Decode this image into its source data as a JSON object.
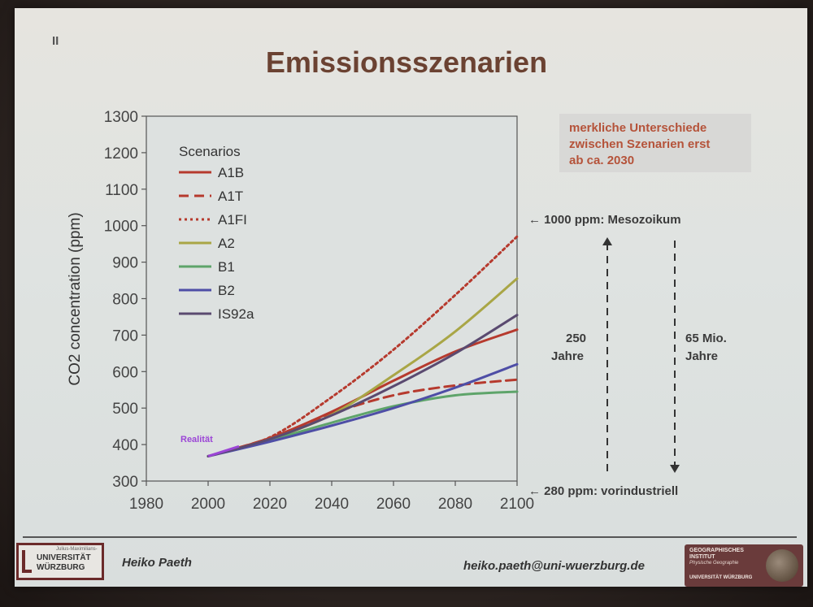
{
  "slide": {
    "number": "II",
    "title": "Emissionsszenarien",
    "note": [
      "merkliche Unterschiede",
      "zwischen Szenarien erst",
      "ab ca. 2030"
    ],
    "annotations": {
      "top": "← 1000 ppm: Mesozoikum",
      "bottom": "← 280 ppm: vorindustriell",
      "left_value": "250",
      "left_unit": "Jahre",
      "right_value": "65 Mio.",
      "right_unit": "Jahre"
    },
    "footer": {
      "university_small": "Julius-Maximilians-",
      "university_line1": "UNIVERSITÄT",
      "university_line2": "WÜRZBURG",
      "author": "Heiko Paeth",
      "email": "heiko.paeth@uni-wuerzburg.de",
      "institute_line1": "GEOGRAPHISCHES",
      "institute_line2": "INSTITUT",
      "institute_line3": "Physische Geographie",
      "institute_line4": "UNIVERSITÄT WÜRZBURG"
    }
  },
  "chart_data": {
    "type": "line",
    "title": "",
    "xlabel": "",
    "ylabel": "CO2 concentration (ppm)",
    "xlim": [
      1980,
      2100
    ],
    "ylim": [
      300,
      1300
    ],
    "x_ticks": [
      1980,
      2000,
      2020,
      2040,
      2060,
      2080,
      2100
    ],
    "y_ticks": [
      300,
      400,
      500,
      600,
      700,
      800,
      900,
      1000,
      1100,
      1200,
      1300
    ],
    "legend_title": "Scenarios",
    "legend_position": "top-left",
    "annotation": "Realität",
    "x": [
      2000,
      2020,
      2040,
      2060,
      2080,
      2100
    ],
    "series": [
      {
        "name": "A1B",
        "color": "#b63a2e",
        "style": "solid",
        "values": [
          368,
          418,
          490,
          575,
          655,
          715
        ]
      },
      {
        "name": "A1T",
        "color": "#b63a2e",
        "style": "dashed",
        "values": [
          368,
          418,
          485,
          535,
          562,
          578
        ]
      },
      {
        "name": "A1FI",
        "color": "#b63a2e",
        "style": "dotted",
        "values": [
          368,
          420,
          530,
          660,
          810,
          970
        ]
      },
      {
        "name": "A2",
        "color": "#a9a646",
        "style": "solid",
        "values": [
          368,
          415,
          482,
          590,
          710,
          855
        ]
      },
      {
        "name": "B1",
        "color": "#5ea46a",
        "style": "solid",
        "values": [
          368,
          412,
          460,
          505,
          535,
          545
        ]
      },
      {
        "name": "B2",
        "color": "#4e4ea6",
        "style": "solid",
        "values": [
          368,
          408,
          452,
          500,
          556,
          620
        ]
      },
      {
        "name": "IS92a",
        "color": "#5a4a70",
        "style": "solid",
        "values": [
          368,
          415,
          480,
          560,
          650,
          755
        ]
      }
    ],
    "reality": {
      "color": "#9b45d6",
      "x": [
        2000,
        2010
      ],
      "values": [
        368,
        395
      ]
    }
  }
}
